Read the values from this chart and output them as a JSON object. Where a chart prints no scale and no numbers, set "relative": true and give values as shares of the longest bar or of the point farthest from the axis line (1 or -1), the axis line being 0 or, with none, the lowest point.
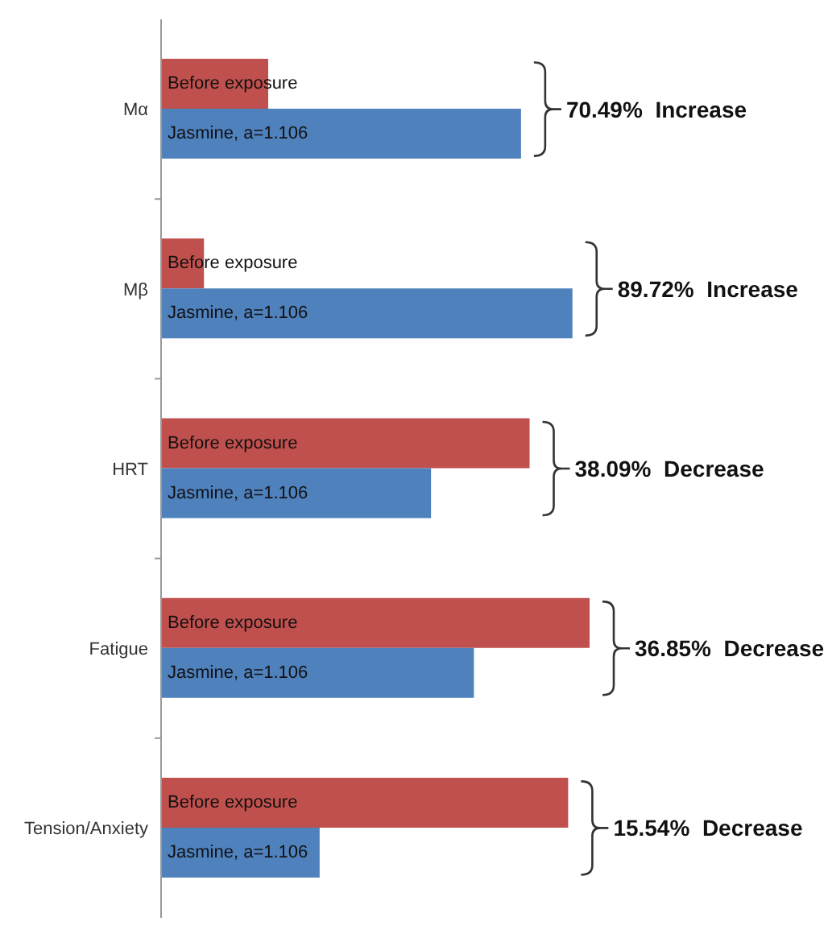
{
  "chart_data": {
    "type": "bar",
    "orientation": "horizontal",
    "relative": true,
    "categories": [
      "Mα",
      "Mβ",
      "HRT",
      "Fatigue",
      "Tension/Anxiety"
    ],
    "series": [
      {
        "name": "Before exposure",
        "color": "#c0504d",
        "values": [
          0.25,
          0.1,
          0.86,
          1,
          0.95
        ]
      },
      {
        "name": "Jasmine, a=1.106",
        "color": "#4f81bd",
        "values": [
          0.84,
          0.96,
          0.63,
          0.73,
          0.37
        ]
      }
    ],
    "annotations": [
      "70.49%  Increase",
      "89.72%  Increase",
      "38.09%  Decrease",
      "36.85%  Decrease",
      "15.54%  Decrease"
    ],
    "stacked": false
  }
}
